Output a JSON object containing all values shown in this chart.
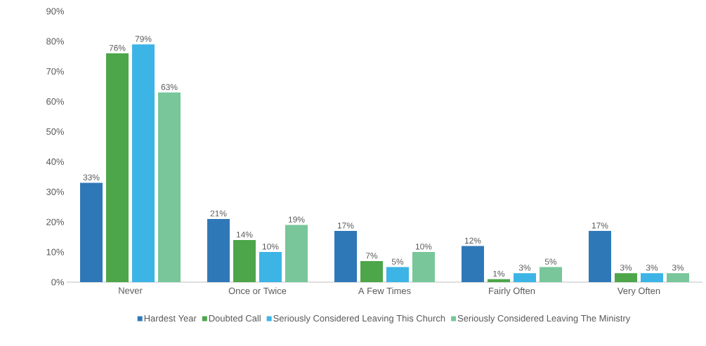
{
  "chart_data": {
    "type": "bar",
    "categories": [
      "Never",
      "Once or Twice",
      "A Few Times",
      "Fairly Often",
      "Very Often"
    ],
    "series": [
      {
        "name": "Hardest Year",
        "color": "#2f78b8",
        "values": [
          33,
          21,
          17,
          12,
          17
        ],
        "value_labels": [
          "33%",
          "21%",
          "17%",
          "12%",
          "17%"
        ]
      },
      {
        "name": "Doubted Call",
        "color": "#4da64a",
        "values": [
          76,
          14,
          7,
          1,
          3
        ],
        "value_labels": [
          "76%",
          "14%",
          "7%",
          "1%",
          "3%"
        ]
      },
      {
        "name": "Seriously Considered Leaving This Church",
        "color": "#3db4e6",
        "values": [
          79,
          10,
          5,
          3,
          3
        ],
        "value_labels": [
          "79%",
          "10%",
          "5%",
          "3%",
          "3%"
        ]
      },
      {
        "name": "Seriously Considered Leaving The Ministry",
        "color": "#78c69a",
        "values": [
          63,
          19,
          10,
          5,
          3
        ],
        "value_labels": [
          "63%",
          "19%",
          "10%",
          "5%",
          "3%"
        ]
      }
    ],
    "ylim": [
      0,
      90
    ],
    "yticks": [
      {
        "value": 0,
        "label": "0%"
      },
      {
        "value": 10,
        "label": "10%"
      },
      {
        "value": 20,
        "label": "20%"
      },
      {
        "value": 30,
        "label": "30%"
      },
      {
        "value": 40,
        "label": "40%"
      },
      {
        "value": 50,
        "label": "50%"
      },
      {
        "value": 60,
        "label": "60%"
      },
      {
        "value": 70,
        "label": "70%"
      },
      {
        "value": 80,
        "label": "80%"
      },
      {
        "value": 90,
        "label": "90%"
      }
    ],
    "legend": "bottom"
  }
}
